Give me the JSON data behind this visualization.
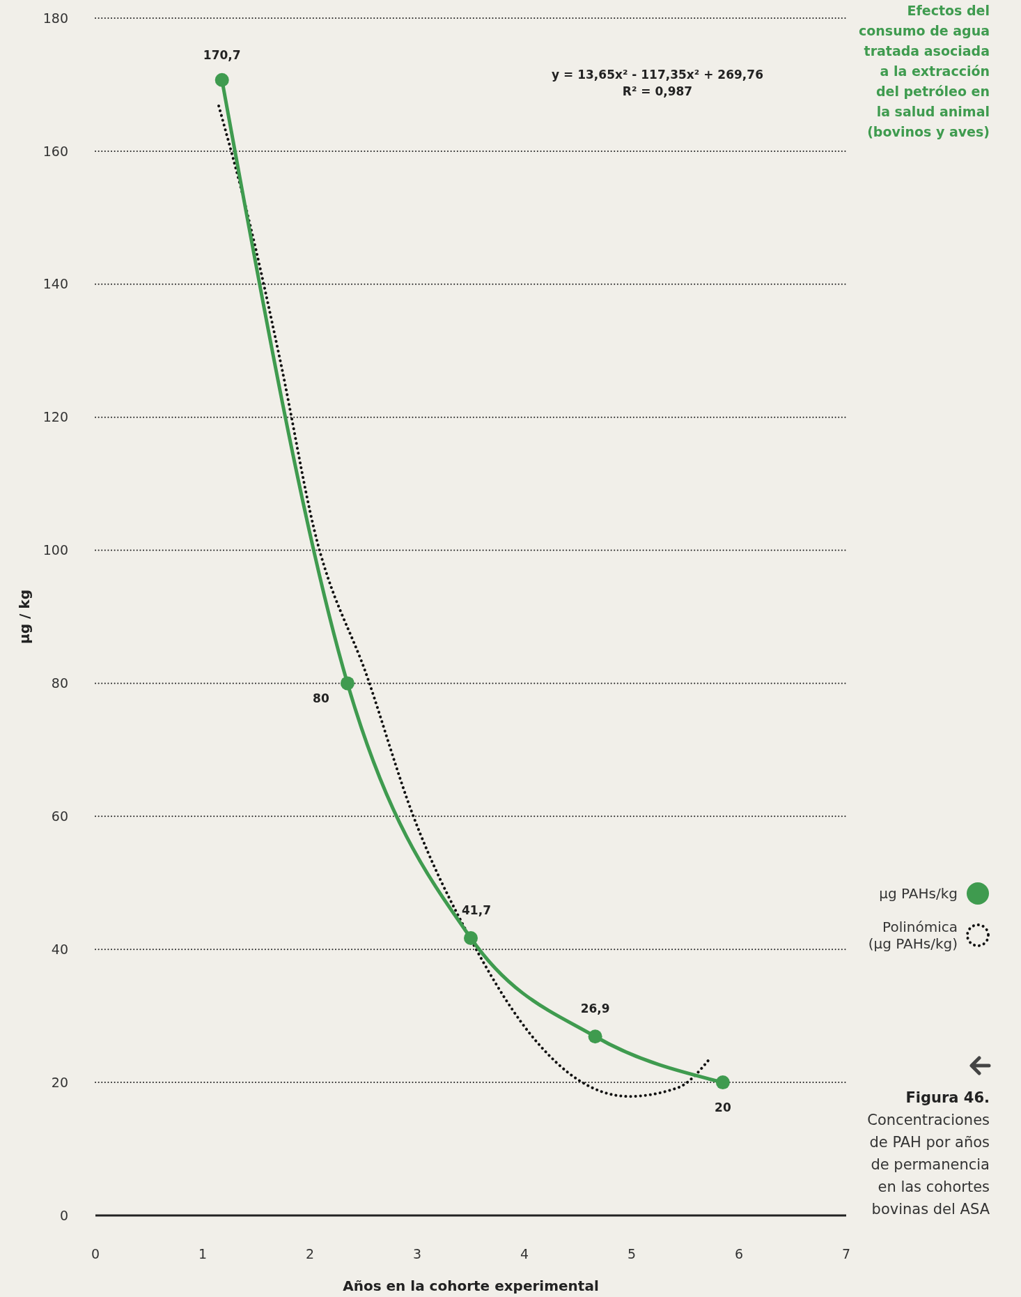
{
  "chart_data": {
    "type": "line",
    "title": "Efectos del consumo de agua tratada asociada a la extracción del petróleo en la salud animal (bovinos y aves)",
    "xlabel": "Años en la cohorte experimental",
    "ylabel": "µg / kg",
    "xlim": [
      0,
      7
    ],
    "xticks": [
      0,
      1,
      2,
      3,
      4,
      5,
      6,
      7
    ],
    "ylim": [
      0,
      180
    ],
    "yticks": [
      0,
      20,
      40,
      60,
      80,
      100,
      120,
      140,
      160,
      180
    ],
    "grid": "y",
    "legend": "right",
    "annotations": [
      "y = 13,65x² - 117,35x² + 269,76",
      "R² = 0,987",
      "Figura 46.",
      "Concentraciones de PAH por años de permanencia en las cohortes bovinas del ASA"
    ],
    "series": [
      {
        "name": "µg PAHs/kg",
        "color": "#3f9b4f",
        "marker": "circle",
        "line_style": "solid",
        "x": [
          1.18,
          2.35,
          3.5,
          4.66,
          5.85
        ],
        "values": [
          170.7,
          80,
          41.7,
          26.9,
          20
        ],
        "value_labels": [
          "170,7",
          "80",
          "41,7",
          "26,9",
          "20"
        ]
      },
      {
        "name": "Polinómica (µg PAHs/kg)",
        "color": "#111111",
        "marker": "none",
        "line_style": "dotted",
        "x": [
          1.15,
          1.42,
          1.73,
          2.04,
          2.54,
          2.96,
          3.5,
          4.12,
          4.5,
          4.97,
          5.43,
          5.74
        ],
        "values": [
          166.8,
          150.4,
          128,
          103.1,
          80.7,
          60.2,
          41.5,
          26,
          20.4,
          17.9,
          19.2,
          23.8
        ]
      }
    ]
  }
}
